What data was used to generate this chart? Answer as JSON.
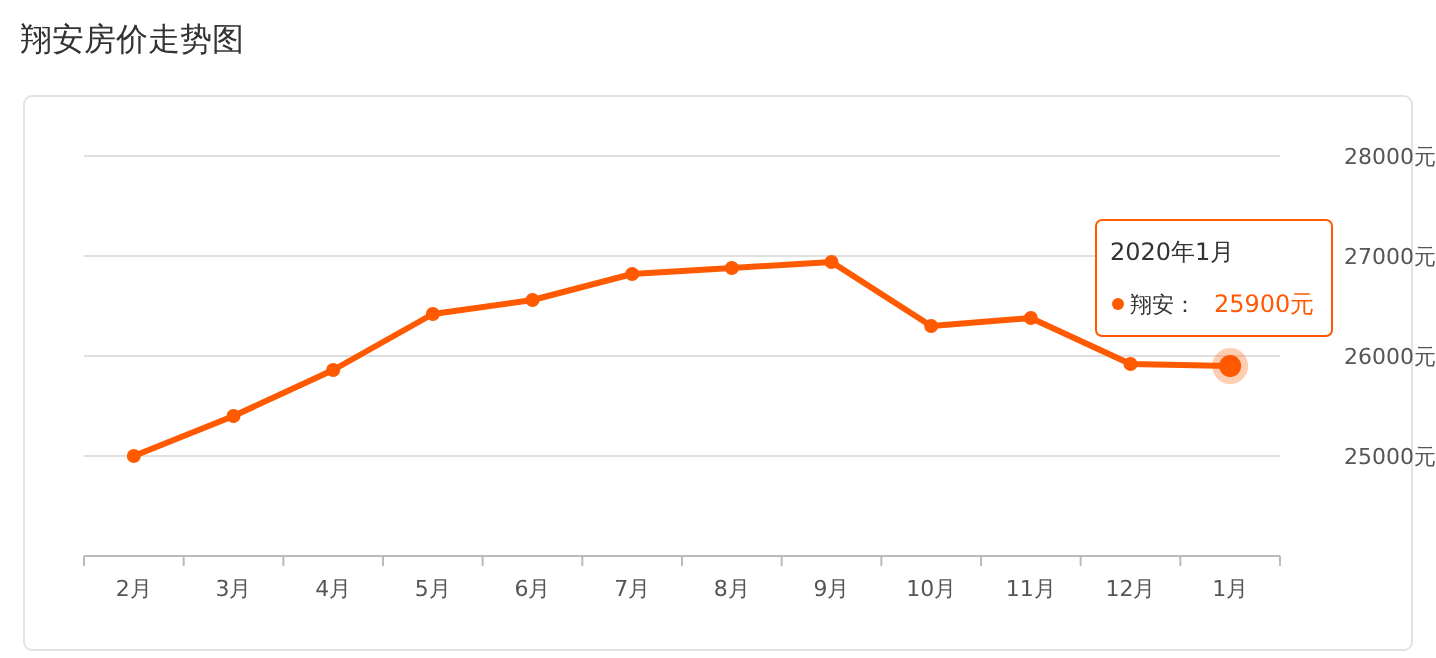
{
  "chart_data": {
    "type": "line",
    "title": "翔安房价走势图",
    "categories": [
      "2月",
      "3月",
      "4月",
      "5月",
      "6月",
      "7月",
      "8月",
      "9月",
      "10月",
      "11月",
      "12月",
      "1月"
    ],
    "series": [
      {
        "name": "翔安：",
        "color": "#ff5a00",
        "values": [
          25000,
          25400,
          25860,
          26420,
          26560,
          26820,
          26880,
          26940,
          26300,
          26380,
          25920,
          25900
        ],
        "value_labels": [
          null,
          null,
          null,
          null,
          null,
          null,
          null,
          null,
          null,
          null,
          null,
          "25900元"
        ]
      }
    ],
    "ylim": [
      24000,
      28000
    ],
    "yticks": [
      {
        "value": 24000,
        "label": null
      },
      {
        "value": 25000,
        "label": "25000元"
      },
      {
        "value": 26000,
        "label": "26000元"
      },
      {
        "value": 27000,
        "label": "27000元"
      },
      {
        "value": 28000,
        "label": "28000元"
      }
    ],
    "annotations": [
      "2020年1月"
    ],
    "grid": "y",
    "marker": "circle",
    "line_style": "solid"
  }
}
